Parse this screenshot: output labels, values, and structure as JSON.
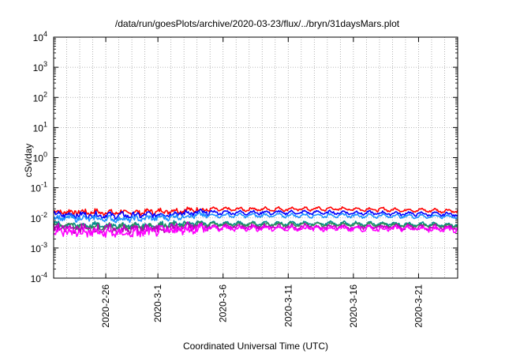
{
  "chart_data": {
    "type": "line",
    "title": "/data/run/goesPlots/archive/2020-03-23/flux/../bryn/31daysMars.plot",
    "xlabel": "Coordinated Universal Time (UTC)",
    "ylabel": "cSv/day",
    "yscale": "log",
    "ylim_exponents": [
      -4,
      4
    ],
    "y_ticks": [
      {
        "base": "10",
        "exp": "-4"
      },
      {
        "base": "10",
        "exp": "-3"
      },
      {
        "base": "10",
        "exp": "-2"
      },
      {
        "base": "10",
        "exp": "-1"
      },
      {
        "base": "10",
        "exp": "0"
      },
      {
        "base": "10",
        "exp": "1"
      },
      {
        "base": "10",
        "exp": "2"
      },
      {
        "base": "10",
        "exp": "3"
      },
      {
        "base": "10",
        "exp": "4"
      }
    ],
    "xlim": [
      "2020-02-22",
      "2020-03-24"
    ],
    "x_ticks": [
      "2020-2-26",
      "2020-3-1",
      "2020-3-6",
      "2020-3-11",
      "2020-3-16",
      "2020-3-21"
    ],
    "x_tick_dates": [
      "2020-02-26",
      "2020-03-01",
      "2020-03-06",
      "2020-03-11",
      "2020-03-16",
      "2020-03-21"
    ],
    "grid": true,
    "series": [
      {
        "color": "#ff0000",
        "x": [
          "2020-02-22",
          "2020-02-28",
          "2020-03-04",
          "2020-03-15",
          "2020-03-24"
        ],
        "y": [
          0.016,
          0.015,
          0.019,
          0.02,
          0.017
        ],
        "x_start": "2020-02-22",
        "x_end": "2020-03-24",
        "points": [
          0.016,
          0.015,
          0.019,
          0.02,
          0.017
        ]
      },
      {
        "color": "#0000ff",
        "x": [
          "2020-02-22",
          "2020-02-28",
          "2020-03-04",
          "2020-03-15",
          "2020-03-24"
        ],
        "y": [
          0.013,
          0.012,
          0.015,
          0.015,
          0.013
        ]
      },
      {
        "color": "#1e90ff",
        "x": [
          "2020-02-22",
          "2020-02-28",
          "2020-03-04",
          "2020-03-15",
          "2020-03-24"
        ],
        "y": [
          0.01,
          0.009,
          0.012,
          0.012,
          0.011
        ]
      },
      {
        "color": "#008b8b",
        "x": [
          "2020-02-22",
          "2020-02-28",
          "2020-03-04",
          "2020-03-15",
          "2020-03-24"
        ],
        "y": [
          0.006,
          0.0055,
          0.0065,
          0.0065,
          0.006
        ]
      },
      {
        "color": "#2e8b57",
        "x": [
          "2020-02-22",
          "2020-02-28",
          "2020-03-04",
          "2020-03-15",
          "2020-03-24"
        ],
        "y": [
          0.0055,
          0.005,
          0.006,
          0.006,
          0.0055
        ]
      },
      {
        "color": "#c000c0",
        "x": [
          "2020-02-22",
          "2020-02-28",
          "2020-03-04",
          "2020-03-15",
          "2020-03-24"
        ],
        "y": [
          0.0045,
          0.004,
          0.005,
          0.005,
          0.0048
        ]
      },
      {
        "color": "#ff00ff",
        "x": [
          "2020-02-22",
          "2020-02-28",
          "2020-03-04",
          "2020-03-15",
          "2020-03-24"
        ],
        "y": [
          0.0035,
          0.003,
          0.0045,
          0.0045,
          0.0042
        ]
      }
    ]
  }
}
